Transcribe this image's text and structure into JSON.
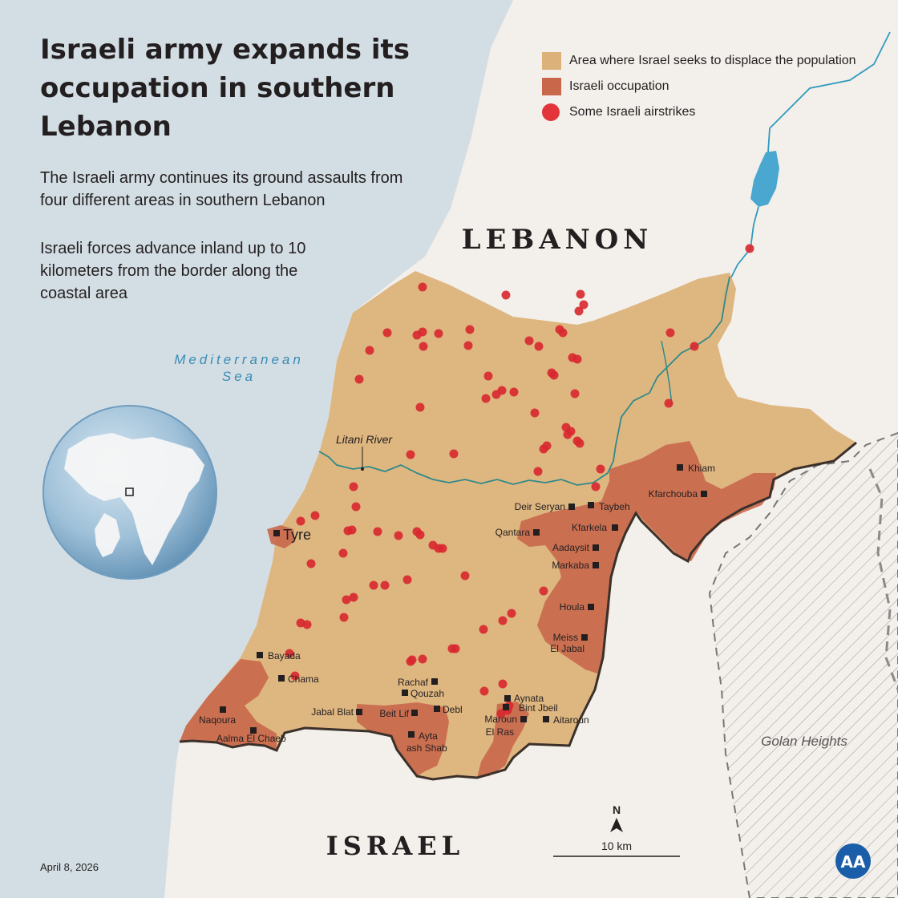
{
  "title": "Israeli army expands its occupation in southern Lebanon",
  "paragraphs": {
    "p1": "The Israeli army continues its ground assaults from four different areas in southern Lebanon",
    "p2": "Israeli forces advance inland up to 10 kilometers from the border along the coastal area"
  },
  "legend": {
    "displace": "Area where Israel seeks to displace the population",
    "occupation": "Israeli occupation",
    "airstrikes": "Some Israeli airstrikes"
  },
  "colors": {
    "sea": "#d3dee4",
    "land": "#f3efea",
    "displace_area": "#dcb27a",
    "occupation": "#c9674b",
    "airstrike": "#d8272d",
    "border": "#3b302a",
    "river": "#2f9bbf",
    "text": "#231f20"
  },
  "labels": {
    "lebanon": "LEBANON",
    "israel": "ISRAEL",
    "sea": "Mediterranean Sea",
    "golan": "Golan Heights",
    "litani": "Litani River",
    "tyre": "Tyre",
    "north": "N",
    "scale": "10 km"
  },
  "towns": {
    "khiam": "Khiam",
    "kfarchouba": "Kfarchouba",
    "deir_seryan": "Deir Seryan",
    "taybeh": "Taybeh",
    "kfarkela": "Kfarkela",
    "qantara": "Qantara",
    "aadaysit": "Aadaysit",
    "markaba": "Markaba",
    "houla": "Houla",
    "meiss_line1": "Meiss",
    "meiss_line2": "El Jabal",
    "bayada": "Bayada",
    "chama": "Chama",
    "rachaf": "Rachaf",
    "qouzah": "Qouzah",
    "aynata": "Aynata",
    "bint_jbeil": "Bint Jbeil",
    "jabal_blat": "Jabal Blat",
    "beit_lif": "Beit Lif",
    "debl": "Debl",
    "naqoura": "Naqoura",
    "aalma": "Aalma El Chaeb",
    "ayta_line1": "Ayta",
    "ayta_line2": "ash Shab",
    "maroun_line1": "Maroun",
    "maroun_line2": "El Ras",
    "aitaroun": "Aitaroun"
  },
  "date": "April 8, 2026",
  "logo": "AA"
}
